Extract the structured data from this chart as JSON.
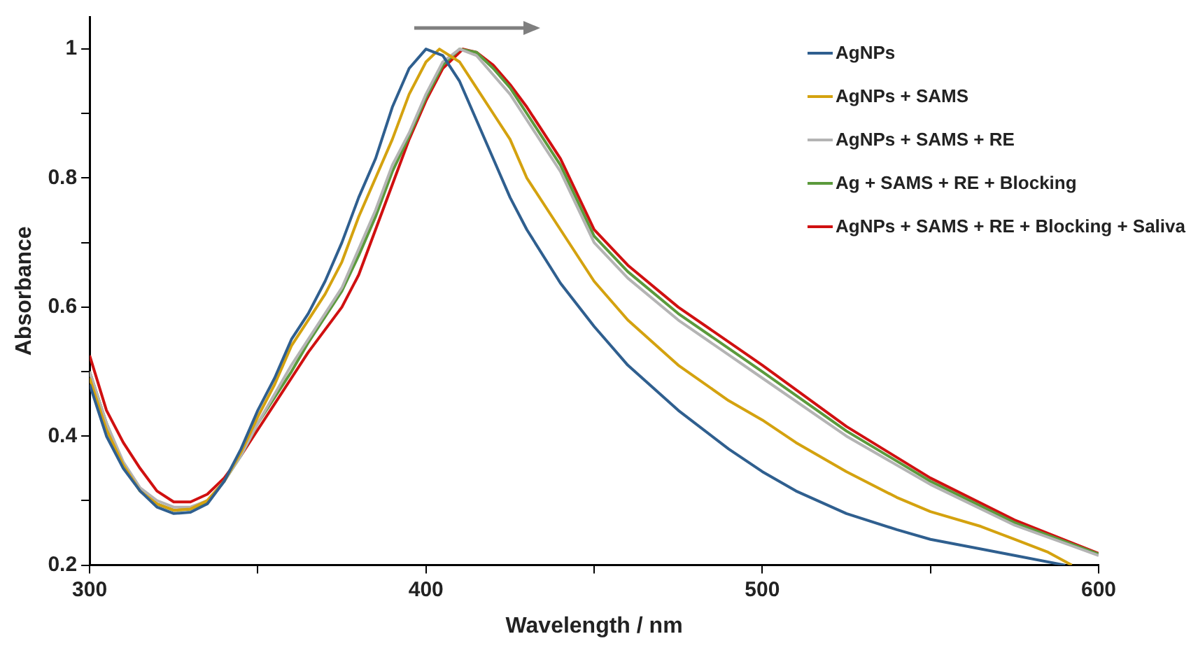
{
  "chart_data": {
    "type": "line",
    "xlabel": "Wavelength / nm",
    "ylabel": "Absorbance",
    "xlim": [
      300,
      600
    ],
    "xticks": [
      300,
      {
        "value": 350,
        "label": null
      },
      400,
      {
        "value": 450,
        "label": null
      },
      500,
      {
        "value": 550,
        "label": null
      },
      600
    ],
    "ylim": [
      0.2,
      1.05
    ],
    "yticks": [
      0.2,
      {
        "value": 0.3,
        "label": null
      },
      0.4,
      {
        "value": 0.5,
        "label": null
      },
      0.6,
      {
        "value": 0.7,
        "label": null
      },
      0.8,
      {
        "value": 0.9,
        "label": null
      },
      1
    ],
    "grid": false,
    "legend": "top right",
    "marker": "none",
    "line_style": "solid",
    "series": [
      {
        "name": "AgNPs",
        "color": "#2f5f8f",
        "x": [
          300,
          305,
          310,
          315,
          320,
          325,
          330,
          335,
          340,
          345,
          350,
          355,
          360,
          365,
          370,
          375,
          380,
          385,
          390,
          395,
          400,
          405,
          410,
          415,
          420,
          425,
          430,
          440,
          450,
          460,
          475,
          490,
          500,
          510,
          525,
          540,
          550,
          565,
          575,
          590
        ],
        "values": [
          0.48,
          0.4,
          0.35,
          0.315,
          0.29,
          0.28,
          0.282,
          0.295,
          0.33,
          0.38,
          0.44,
          0.49,
          0.55,
          0.59,
          0.64,
          0.7,
          0.77,
          0.83,
          0.91,
          0.97,
          1.0,
          0.99,
          0.95,
          0.89,
          0.83,
          0.77,
          0.72,
          0.637,
          0.57,
          0.51,
          0.44,
          0.38,
          0.345,
          0.315,
          0.28,
          0.255,
          0.24,
          0.225,
          0.215,
          0.2
        ]
      },
      {
        "name": "AgNPs + SAMS",
        "color": "#d4a20f",
        "x": [
          300,
          305,
          310,
          315,
          320,
          325,
          330,
          335,
          340,
          345,
          350,
          355,
          360,
          365,
          370,
          375,
          380,
          385,
          390,
          395,
          400,
          404,
          410,
          415,
          420,
          425,
          430,
          440,
          450,
          460,
          475,
          490,
          500,
          510,
          525,
          540,
          550,
          565,
          575,
          585,
          592
        ],
        "values": [
          0.49,
          0.41,
          0.355,
          0.315,
          0.295,
          0.285,
          0.287,
          0.3,
          0.33,
          0.375,
          0.43,
          0.48,
          0.54,
          0.58,
          0.62,
          0.67,
          0.74,
          0.8,
          0.86,
          0.93,
          0.98,
          1.0,
          0.98,
          0.94,
          0.9,
          0.86,
          0.8,
          0.72,
          0.64,
          0.58,
          0.51,
          0.455,
          0.425,
          0.39,
          0.345,
          0.305,
          0.283,
          0.26,
          0.24,
          0.22,
          0.2
        ]
      },
      {
        "name": "AgNPs + SAMS + RE",
        "color": "#b4b4b4",
        "x": [
          300,
          305,
          310,
          315,
          320,
          325,
          330,
          335,
          340,
          345,
          350,
          355,
          360,
          365,
          370,
          375,
          380,
          385,
          390,
          395,
          400,
          405,
          410,
          415,
          420,
          425,
          430,
          435,
          440,
          450,
          460,
          475,
          500,
          525,
          550,
          575,
          600
        ],
        "values": [
          0.5,
          0.42,
          0.36,
          0.32,
          0.3,
          0.29,
          0.29,
          0.3,
          0.33,
          0.37,
          0.42,
          0.465,
          0.51,
          0.55,
          0.59,
          0.63,
          0.69,
          0.75,
          0.82,
          0.87,
          0.93,
          0.98,
          1.0,
          0.99,
          0.96,
          0.93,
          0.89,
          0.85,
          0.81,
          0.7,
          0.645,
          0.58,
          0.49,
          0.4,
          0.325,
          0.262,
          0.215
        ]
      },
      {
        "name": "Ag + SAMS + RE + Blocking",
        "color": "#5b9a3c",
        "x": [
          300,
          305,
          310,
          315,
          320,
          325,
          330,
          335,
          340,
          345,
          350,
          355,
          360,
          365,
          370,
          375,
          380,
          385,
          390,
          395,
          400,
          405,
          410,
          415,
          420,
          425,
          430,
          435,
          440,
          450,
          460,
          475,
          500,
          525,
          550,
          575,
          600
        ],
        "values": [
          0.5,
          0.42,
          0.355,
          0.315,
          0.295,
          0.285,
          0.287,
          0.298,
          0.33,
          0.37,
          0.42,
          0.46,
          0.5,
          0.545,
          0.585,
          0.625,
          0.68,
          0.74,
          0.81,
          0.865,
          0.925,
          0.975,
          1.0,
          0.995,
          0.97,
          0.94,
          0.9,
          0.86,
          0.82,
          0.71,
          0.655,
          0.59,
          0.5,
          0.408,
          0.33,
          0.266,
          0.217
        ]
      },
      {
        "name": "AgNPs + SAMS + RE + Blocking + Saliva",
        "color": "#d01010",
        "x": [
          300,
          305,
          310,
          315,
          320,
          325,
          330,
          335,
          340,
          345,
          350,
          355,
          360,
          365,
          370,
          375,
          380,
          385,
          390,
          395,
          400,
          405,
          411,
          415,
          420,
          425,
          430,
          435,
          440,
          450,
          460,
          475,
          500,
          525,
          550,
          575,
          600
        ],
        "values": [
          0.525,
          0.44,
          0.39,
          0.35,
          0.315,
          0.298,
          0.298,
          0.31,
          0.335,
          0.37,
          0.41,
          0.45,
          0.49,
          0.53,
          0.565,
          0.6,
          0.65,
          0.72,
          0.79,
          0.86,
          0.92,
          0.97,
          1.0,
          0.995,
          0.975,
          0.945,
          0.91,
          0.87,
          0.83,
          0.72,
          0.665,
          0.6,
          0.51,
          0.415,
          0.335,
          0.27,
          0.218
        ]
      }
    ]
  }
}
